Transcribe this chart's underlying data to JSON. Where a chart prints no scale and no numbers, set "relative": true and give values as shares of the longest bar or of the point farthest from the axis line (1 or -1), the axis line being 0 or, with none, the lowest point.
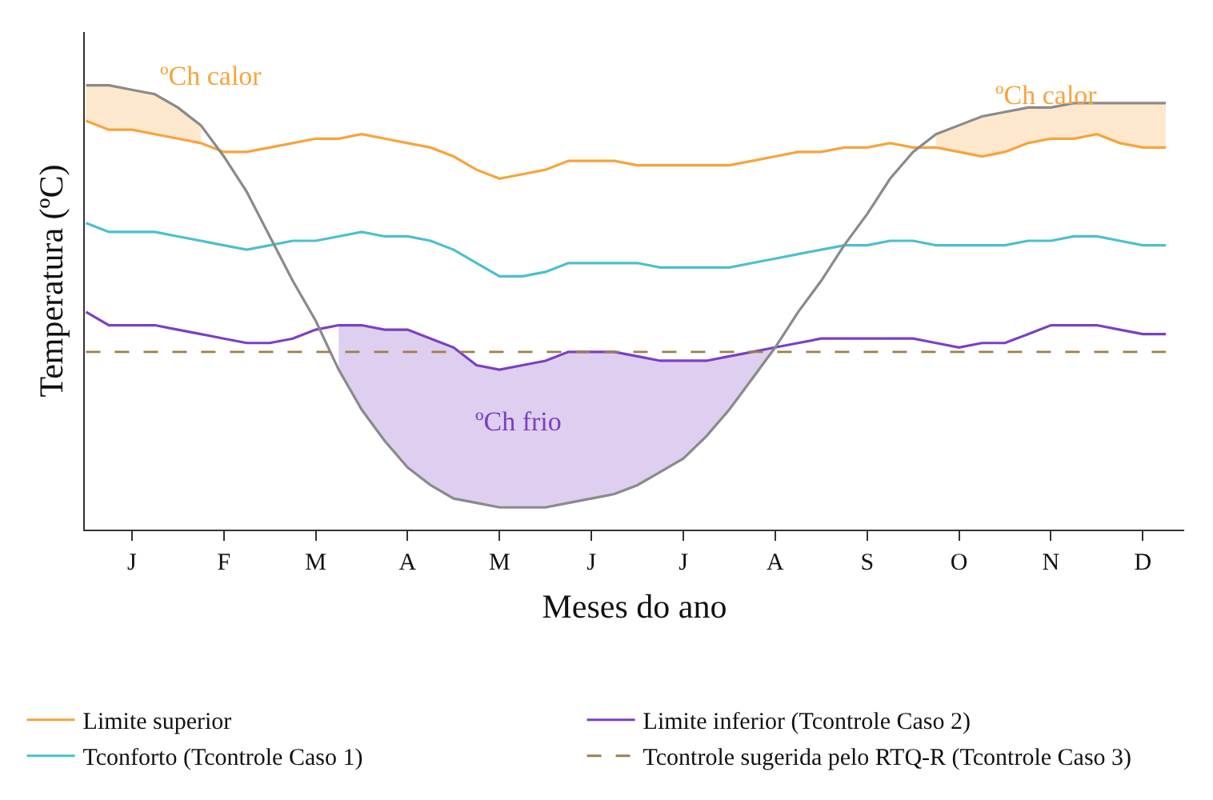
{
  "chart_data": {
    "type": "line",
    "relative": true,
    "xlabel": "Meses do ano",
    "ylabel": "Temperatura (ºC)",
    "legend": "bottom",
    "categories": [
      null,
      null,
      "J",
      null,
      null,
      null,
      "F",
      null,
      null,
      null,
      "M",
      null,
      null,
      null,
      "A",
      null,
      null,
      null,
      "M",
      null,
      null,
      null,
      "J",
      null,
      null,
      null,
      "J",
      null,
      null,
      null,
      "A",
      null,
      null,
      null,
      "S",
      null,
      null,
      null,
      "O",
      null,
      null,
      null,
      "N",
      null,
      null,
      null,
      "D",
      null
    ],
    "series": [
      {
        "name": "Limite superior",
        "color": "#f7a43b",
        "values": [
          0.92,
          0.9,
          0.9,
          0.89,
          0.88,
          0.87,
          0.85,
          0.85,
          0.86,
          0.87,
          0.88,
          0.88,
          0.89,
          0.88,
          0.87,
          0.86,
          0.84,
          0.81,
          0.79,
          0.8,
          0.81,
          0.83,
          0.83,
          0.83,
          0.82,
          0.82,
          0.82,
          0.82,
          0.82,
          0.83,
          0.84,
          0.85,
          0.85,
          0.86,
          0.86,
          0.87,
          0.86,
          0.86,
          0.85,
          0.84,
          0.85,
          0.87,
          0.88,
          0.88,
          0.89,
          0.87,
          0.86,
          0.86
        ],
        "upper": [
          1.0,
          1.0,
          0.99,
          0.98,
          0.95,
          0.91,
          null,
          null,
          null,
          null,
          null,
          null,
          null,
          null,
          null,
          null,
          null,
          null,
          null,
          null,
          null,
          null,
          null,
          null,
          null,
          null,
          null,
          null,
          null,
          null,
          null,
          null,
          null,
          null,
          null,
          null,
          null,
          0.89,
          0.91,
          0.93,
          0.94,
          0.95,
          0.95,
          0.96,
          0.96,
          0.96,
          0.96,
          0.96
        ],
        "lower": [
          0.92,
          0.9,
          0.9,
          0.89,
          0.88,
          0.87,
          null,
          null,
          null,
          null,
          null,
          null,
          null,
          null,
          null,
          null,
          null,
          null,
          null,
          null,
          null,
          null,
          null,
          null,
          null,
          null,
          null,
          null,
          null,
          null,
          null,
          null,
          null,
          null,
          null,
          null,
          null,
          0.86,
          0.85,
          0.84,
          0.85,
          0.87,
          0.88,
          0.88,
          0.89,
          0.87,
          0.86,
          0.86
        ]
      },
      {
        "name": "Tconforto (Tcontrole Caso 1)",
        "color": "#4bbfd0",
        "values": [
          0.69,
          0.67,
          0.67,
          0.67,
          0.66,
          0.65,
          0.64,
          0.63,
          0.64,
          0.65,
          0.65,
          0.66,
          0.67,
          0.66,
          0.66,
          0.65,
          0.63,
          0.6,
          0.57,
          0.57,
          0.58,
          0.6,
          0.6,
          0.6,
          0.6,
          0.59,
          0.59,
          0.59,
          0.59,
          0.6,
          0.61,
          0.62,
          0.63,
          0.64,
          0.64,
          0.65,
          0.65,
          0.64,
          0.64,
          0.64,
          0.64,
          0.65,
          0.65,
          0.66,
          0.66,
          0.65,
          0.64,
          0.64
        ]
      },
      {
        "name": "Limite inferior (Tcontrole Caso 2)",
        "color": "#7b3fc4",
        "values": [
          0.49,
          0.46,
          0.46,
          0.46,
          0.45,
          0.44,
          0.43,
          0.42,
          0.42,
          0.43,
          0.45,
          0.46,
          0.46,
          0.45,
          0.45,
          0.43,
          0.41,
          0.37,
          0.36,
          0.37,
          0.38,
          0.4,
          0.4,
          0.4,
          0.39,
          0.38,
          0.38,
          0.38,
          0.39,
          0.4,
          0.41,
          0.42,
          0.43,
          0.43,
          0.43,
          0.43,
          0.43,
          0.42,
          0.41,
          0.42,
          0.42,
          0.44,
          0.46,
          0.46,
          0.46,
          0.45,
          0.44,
          0.44
        ],
        "upper": [
          null,
          null,
          null,
          null,
          null,
          null,
          null,
          null,
          null,
          null,
          null,
          0.46,
          0.46,
          0.45,
          0.45,
          0.43,
          0.41,
          0.37,
          0.36,
          0.37,
          0.38,
          0.4,
          0.4,
          0.4,
          0.39,
          0.38,
          0.38,
          0.38,
          0.39,
          0.4,
          0.41,
          null,
          null,
          null,
          null,
          null,
          null,
          null,
          null,
          null,
          null,
          null,
          null,
          null,
          null,
          null,
          null,
          null
        ],
        "lower": [
          null,
          null,
          null,
          null,
          null,
          null,
          null,
          null,
          null,
          null,
          null,
          0.36,
          0.27,
          0.2,
          0.14,
          0.1,
          0.07,
          0.06,
          0.05,
          0.05,
          0.05,
          0.06,
          0.07,
          0.08,
          0.1,
          0.13,
          0.16,
          0.21,
          0.27,
          0.34,
          0.41,
          null,
          null,
          null,
          null,
          null,
          null,
          null,
          null,
          null,
          null,
          null,
          null,
          null,
          null,
          null,
          null,
          null
        ]
      },
      {
        "color": "#8a8a8a",
        "values": [
          1.0,
          1.0,
          0.99,
          0.98,
          0.95,
          0.91,
          0.84,
          0.76,
          0.66,
          0.56,
          0.47,
          0.36,
          0.27,
          0.2,
          0.14,
          0.1,
          0.07,
          0.06,
          0.05,
          0.05,
          0.05,
          0.06,
          0.07,
          0.08,
          0.1,
          0.13,
          0.16,
          0.21,
          0.27,
          0.34,
          0.41,
          0.49,
          0.56,
          0.64,
          0.71,
          0.79,
          0.85,
          0.89,
          0.91,
          0.93,
          0.94,
          0.95,
          0.95,
          0.96,
          0.96,
          0.96,
          0.96,
          0.96
        ]
      }
    ],
    "ref_lines": [
      {
        "axis": "y",
        "value": 0.4,
        "label": "Tcontrole sugerida pelo RTQ-R (Tcontrole Caso 3)",
        "color": "#a07e4a",
        "line_style": "dashed"
      }
    ],
    "annotations": [
      "ºCh calor",
      "ºCh calor",
      "ºCh frio"
    ]
  }
}
